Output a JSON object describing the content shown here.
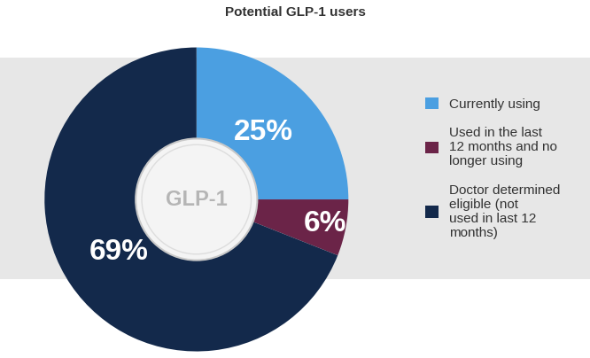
{
  "chart_data": {
    "type": "pie",
    "title": "Potential GLP-1 users",
    "categories": [
      "Currently using",
      "Used in the last 12 months and no longer using",
      "Doctor determined eligible (not used in last 12 months)"
    ],
    "values": [
      25,
      6,
      69
    ],
    "value_labels": [
      "25%",
      "6%",
      "69%"
    ],
    "colors": [
      "#4b9fe1",
      "#6b2448",
      "#13294b"
    ],
    "data_labels": true,
    "legend": "center left",
    "annotations": [
      "GLP-1"
    ]
  }
}
